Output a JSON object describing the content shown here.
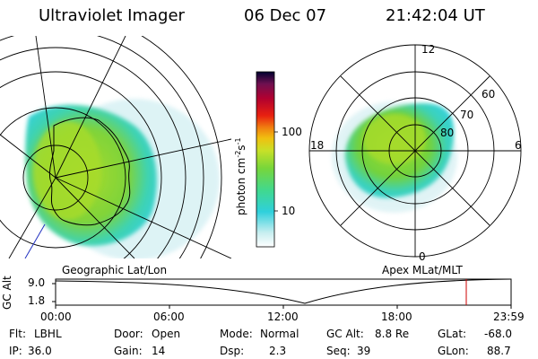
{
  "header": {
    "title": "Ultraviolet Imager",
    "date": "06 Dec 07",
    "time": "21:42:04 UT"
  },
  "left_panel": {
    "label": "Geographic Lat/Lon"
  },
  "colorbar": {
    "label": "photon cm^-2 s^-1",
    "ticks": [
      "100",
      "10"
    ],
    "scale": "log"
  },
  "right_panel": {
    "label": "Apex MLat/MLT",
    "mlt_labels": {
      "top": "12",
      "bottom": "0",
      "left": "18",
      "right": "6"
    },
    "lat_labels": [
      "60",
      "70",
      "80"
    ]
  },
  "timeline": {
    "ylabel": "GC Alt",
    "yticks": [
      "9.0",
      "1.8"
    ],
    "xticks": [
      "00:00",
      "06:00",
      "12:00",
      "18:00",
      "23:59"
    ],
    "marker_time": "21:42"
  },
  "info": {
    "flt_label": "Flt:",
    "flt": "LBHL",
    "ip_label": "IP:",
    "ip": "36.0",
    "door_label": "Door:",
    "door": "Open",
    "gain_label": "Gain:",
    "gain": "14",
    "mode_label": "Mode:",
    "mode": "Normal",
    "dsp_label": "Dsp:",
    "dsp": "2.3",
    "gcalt_label": "GC Alt:",
    "gcalt": "8.8 Re",
    "seq_label": "Seq:",
    "seq": "39",
    "glat_label": "GLat:",
    "glat": "-68.0",
    "glon_label": "GLon:",
    "glon": "88.7"
  },
  "colors": {
    "aurora_green": "#7fd33a",
    "aurora_cyan": "#35d1d8",
    "coast": "#000000",
    "marker": "#cc0000"
  }
}
